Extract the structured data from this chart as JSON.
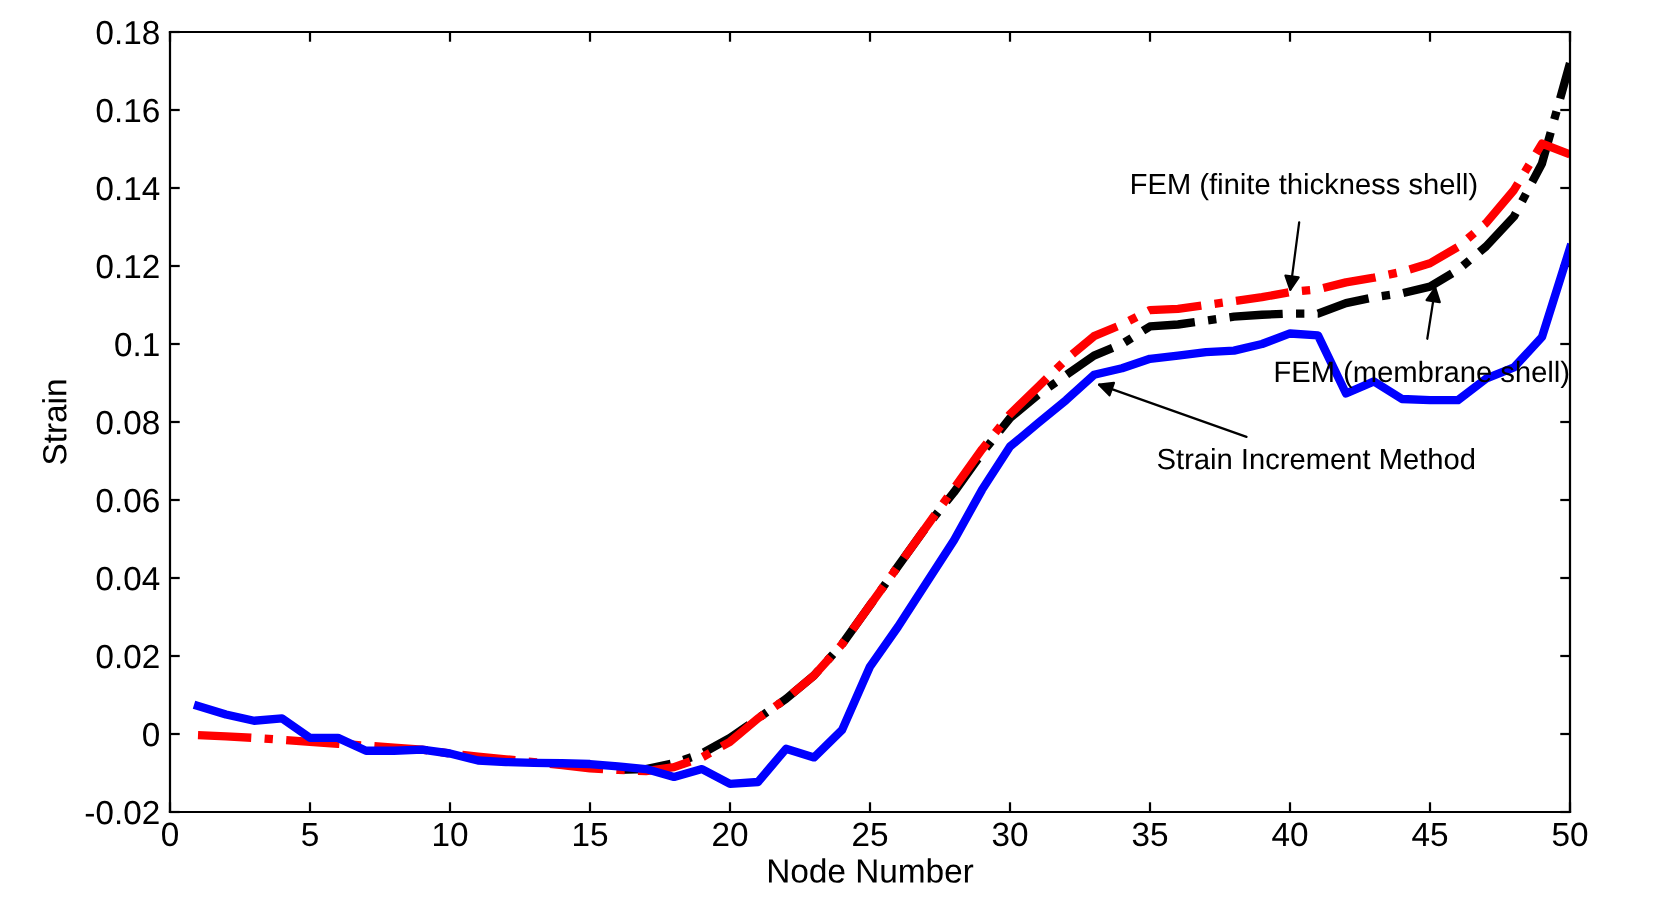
{
  "chart_data": {
    "type": "line",
    "xlabel": "Node Number",
    "ylabel": "Strain",
    "x": [
      1,
      2,
      3,
      4,
      5,
      6,
      7,
      8,
      9,
      10,
      11,
      12,
      13,
      14,
      15,
      16,
      17,
      18,
      19,
      20,
      21,
      22,
      23,
      24,
      25,
      26,
      27,
      28,
      29,
      30,
      31,
      32,
      33,
      34,
      35,
      36,
      37,
      38,
      39,
      40,
      41,
      42,
      43,
      44,
      45,
      46,
      47,
      48,
      49,
      50
    ],
    "series": [
      {
        "color": "#000000",
        "line_style": "dashdot",
        "values": [
          null,
          null,
          null,
          null,
          null,
          null,
          null,
          null,
          null,
          null,
          null,
          null,
          null,
          null,
          null,
          -0.0092,
          -0.009,
          -0.0075,
          -0.005,
          -0.001,
          0.004,
          0.009,
          0.015,
          0.023,
          0.033,
          0.043,
          0.053,
          0.062,
          0.072,
          0.081,
          0.087,
          0.092,
          0.097,
          0.1,
          0.1045,
          0.105,
          0.106,
          0.107,
          0.1075,
          0.1078,
          0.1078,
          0.1105,
          0.112,
          0.113,
          0.1147,
          0.119,
          0.125,
          0.1327,
          0.1463,
          0.172
        ]
      },
      {
        "color": "#ff0000",
        "line_style": "dashdot",
        "values": [
          -0.0003,
          -0.0006,
          -0.001,
          -0.0015,
          -0.002,
          -0.0025,
          -0.003,
          -0.0035,
          -0.004,
          -0.005,
          -0.0058,
          -0.0065,
          -0.0072,
          -0.008,
          -0.0088,
          -0.0092,
          -0.0095,
          -0.0085,
          -0.006,
          -0.002,
          0.004,
          0.009,
          0.015,
          0.023,
          0.033,
          0.043,
          0.053,
          0.063,
          0.073,
          0.082,
          0.089,
          0.096,
          0.102,
          0.105,
          0.1087,
          0.109,
          0.11,
          0.111,
          0.112,
          0.1133,
          0.114,
          0.1158,
          0.117,
          0.1185,
          0.1207,
          0.1249,
          0.131,
          0.1395,
          0.1514,
          0.1486
        ]
      },
      {
        "color": "#0000ff",
        "line_style": "solid",
        "values": [
          0.0072,
          0.005,
          0.0034,
          0.004,
          -0.001,
          -0.001,
          -0.0043,
          -0.0043,
          -0.004,
          -0.005,
          -0.0068,
          -0.0072,
          -0.0074,
          -0.0075,
          -0.0077,
          -0.0083,
          -0.009,
          -0.011,
          -0.009,
          -0.0128,
          -0.0123,
          -0.0038,
          -0.006,
          0.001,
          0.0173,
          0.0275,
          0.0386,
          0.0497,
          0.0626,
          0.0737,
          0.0797,
          0.0856,
          0.0921,
          0.0938,
          0.0962,
          0.097,
          0.0979,
          0.0983,
          0.1,
          0.1027,
          0.1022,
          0.0873,
          0.0904,
          0.0859,
          0.0856,
          0.0856,
          0.0911,
          0.094,
          0.1018,
          0.1246
        ]
      }
    ],
    "annotations": [
      {
        "text": "FEM (finite thickness shell)",
        "x": 40,
        "y": 0.1133
      },
      {
        "text": "FEM (membrane shell)",
        "x": 45.2,
        "y": 0.115
      },
      {
        "text": "Strain Increment Method",
        "x": 33.1,
        "y": 0.0898
      }
    ],
    "xlim": [
      0,
      50
    ],
    "xticks": [
      0,
      5,
      10,
      15,
      20,
      25,
      30,
      35,
      40,
      45,
      50
    ],
    "ylim": [
      -0.02,
      0.18
    ],
    "yticks": [
      -0.02,
      0,
      0.02,
      0.04,
      0.06,
      0.08,
      0.1,
      0.12,
      0.14,
      0.16,
      0.18
    ],
    "grid": false,
    "legend": false,
    "marker": "none"
  }
}
